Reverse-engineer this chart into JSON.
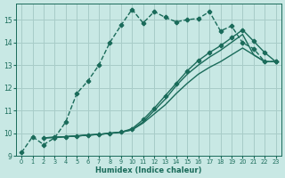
{
  "title": "",
  "xlabel": "Humidex (Indice chaleur)",
  "ylabel": "",
  "bg_color": "#c8e8e4",
  "grid_color": "#a8ccc8",
  "line_color": "#1a6b5a",
  "xlim": [
    -0.5,
    23.5
  ],
  "ylim": [
    9,
    15.7
  ],
  "yticks": [
    9,
    10,
    11,
    12,
    13,
    14,
    15
  ],
  "xticks": [
    0,
    1,
    2,
    3,
    4,
    5,
    6,
    7,
    8,
    9,
    10,
    11,
    12,
    13,
    14,
    15,
    16,
    17,
    18,
    19,
    20,
    21,
    22,
    23
  ],
  "series": [
    {
      "x": [
        0,
        1,
        2,
        3,
        4,
        5,
        6,
        7,
        8,
        9,
        10,
        11,
        12,
        13,
        14,
        15,
        16,
        17,
        18,
        19,
        20,
        21,
        22,
        23
      ],
      "y": [
        9.15,
        9.85,
        9.5,
        9.8,
        10.5,
        11.75,
        12.3,
        13.0,
        14.0,
        14.75,
        15.45,
        14.85,
        15.35,
        15.1,
        14.9,
        15.0,
        15.05,
        15.35,
        14.5,
        14.72,
        13.98,
        13.72,
        13.15,
        13.15
      ],
      "marker": "P",
      "markersize": 3.0,
      "lw": 1.0,
      "linestyle": "--"
    },
    {
      "x": [
        2,
        3,
        4,
        5,
        6,
        7,
        8,
        9,
        10,
        11,
        12,
        13,
        14,
        15,
        16,
        17,
        18,
        19,
        20,
        21,
        22,
        23
      ],
      "y": [
        9.8,
        9.82,
        9.85,
        9.88,
        9.92,
        9.95,
        10.0,
        10.05,
        10.15,
        10.45,
        10.85,
        11.25,
        11.75,
        12.2,
        12.6,
        12.9,
        13.15,
        13.45,
        13.75,
        13.45,
        13.15,
        13.15
      ],
      "marker": null,
      "markersize": 0,
      "lw": 1.0,
      "linestyle": "-"
    },
    {
      "x": [
        2,
        3,
        4,
        5,
        6,
        7,
        8,
        9,
        10,
        11,
        12,
        13,
        14,
        15,
        16,
        17,
        18,
        19,
        20,
        21,
        22,
        23
      ],
      "y": [
        9.8,
        9.82,
        9.85,
        9.88,
        9.92,
        9.95,
        10.0,
        10.05,
        10.15,
        10.5,
        11.0,
        11.5,
        12.1,
        12.6,
        13.0,
        13.35,
        13.65,
        14.0,
        14.35,
        13.45,
        13.15,
        13.15
      ],
      "marker": null,
      "markersize": 0,
      "lw": 1.0,
      "linestyle": "-"
    },
    {
      "x": [
        2,
        3,
        4,
        5,
        6,
        7,
        8,
        9,
        10,
        11,
        12,
        13,
        14,
        15,
        16,
        17,
        18,
        19,
        20,
        21,
        22,
        23
      ],
      "y": [
        9.8,
        9.82,
        9.85,
        9.88,
        9.92,
        9.95,
        10.0,
        10.05,
        10.2,
        10.6,
        11.1,
        11.65,
        12.2,
        12.75,
        13.2,
        13.55,
        13.85,
        14.2,
        14.55,
        14.05,
        13.55,
        13.15
      ],
      "marker": "P",
      "markersize": 3.0,
      "lw": 1.0,
      "linestyle": "-"
    }
  ]
}
